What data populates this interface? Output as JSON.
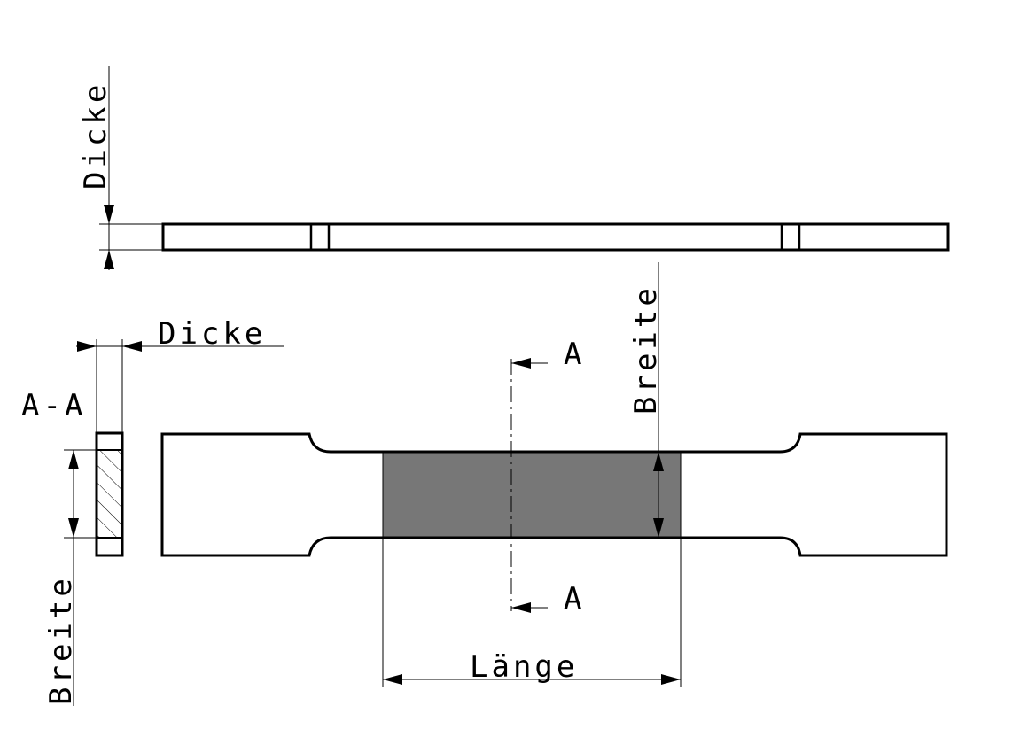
{
  "labels": {
    "dicke_top": "Dicke",
    "dicke_section": "Dicke",
    "breite_section": "Breite",
    "breite_main": "Breite",
    "section_title": "A-A",
    "section_mark_top": "A",
    "section_mark_bottom": "A",
    "laenge": "Länge"
  },
  "colors": {
    "line": "#000000",
    "gauge_fill": "#777777",
    "background": "#ffffff"
  }
}
